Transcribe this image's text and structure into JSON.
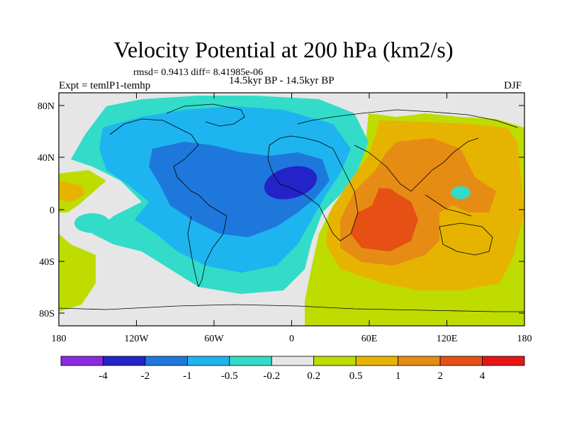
{
  "chart_data": {
    "type": "heatmap",
    "title": "Velocity Potential at 200 hPa (km2/s)",
    "stats_line": "rmsd= 0.9413 diff= 8.41985e-06",
    "left_label": "Expt = temlP1-temhp",
    "center_label": "14.5kyr BP - 14.5kyr BP",
    "right_label": "DJF",
    "x_ticks": [
      "180",
      "120W",
      "60W",
      "0",
      "60E",
      "120E",
      "180"
    ],
    "y_ticks": [
      "80N",
      "40N",
      "0",
      "40S",
      "80S"
    ],
    "xlim": [
      -180,
      180
    ],
    "ylim": [
      -90,
      90
    ],
    "colorbar": {
      "labels": [
        "-4",
        "-2",
        "-1",
        "-0.5",
        "-0.2",
        "0.2",
        "0.5",
        "1",
        "2",
        "4"
      ],
      "colors": [
        "#8a2be2",
        "#2323c8",
        "#1e78dc",
        "#1eb4f0",
        "#32dcc8",
        "#e6e6e6",
        "#bedc00",
        "#e6b400",
        "#e68c14",
        "#e65014",
        "#e61414"
      ]
    },
    "regions": [
      {
        "name": "strong negative center over North Africa / Mediterranean",
        "lon": 8,
        "lat": 25,
        "level": "-4 to -2"
      },
      {
        "name": "broad negative over Atlantic and the Americas",
        "lon": -60,
        "lat": 20,
        "level": "-2 to -1"
      },
      {
        "name": "broad positive over Indian Ocean, Asia and Australia",
        "lon": 90,
        "lat": 0,
        "level": "1 to 2"
      },
      {
        "name": "positive maximum over the tropical Indian Ocean",
        "lon": 60,
        "lat": -15,
        "level": "2 to 4"
      },
      {
        "name": "small negative pocket over western Pacific",
        "lon": 130,
        "lat": 15,
        "level": "-0.5 to -0.2"
      }
    ]
  }
}
